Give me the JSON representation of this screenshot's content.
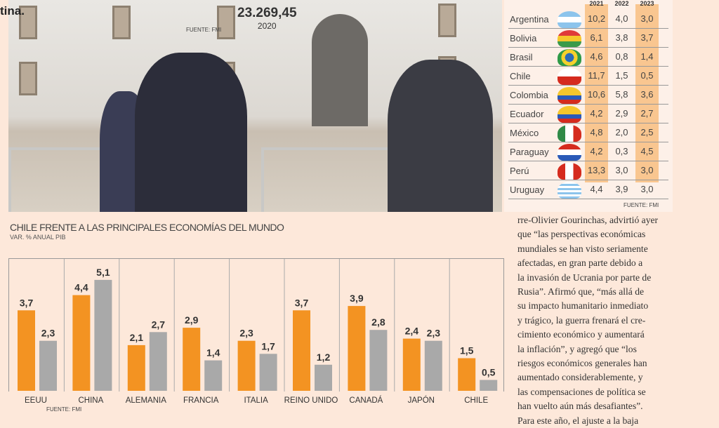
{
  "lead_text": "tina.",
  "pib_figure": {
    "value": "23.269,45",
    "year": "2020",
    "source": "FUENTE: FMI"
  },
  "table": {
    "headers": [
      "2021",
      "2022",
      "2023"
    ],
    "source": "FUENTE: FMI",
    "rows": [
      {
        "country": "Argentina",
        "flag": "argentina-flag",
        "values": [
          "10,2",
          "4,0",
          "3,0"
        ]
      },
      {
        "country": "Bolivia",
        "flag": "bolivia-flag",
        "values": [
          "6,1",
          "3,8",
          "3,7"
        ]
      },
      {
        "country": "Brasil",
        "flag": "brazil-flag",
        "values": [
          "4,6",
          "0,8",
          "1,4"
        ]
      },
      {
        "country": "Chile",
        "flag": "chile-flag",
        "values": [
          "11,7",
          "1,5",
          "0,5"
        ]
      },
      {
        "country": "Colombia",
        "flag": "colombia-flag",
        "values": [
          "10,6",
          "5,8",
          "3,6"
        ]
      },
      {
        "country": "Ecuador",
        "flag": "ecuador-flag",
        "values": [
          "4,2",
          "2,9",
          "2,7"
        ]
      },
      {
        "country": "México",
        "flag": "mexico-flag",
        "values": [
          "4,8",
          "2,0",
          "2,5"
        ]
      },
      {
        "country": "Paraguay",
        "flag": "paraguay-flag",
        "values": [
          "4,2",
          "0,3",
          "4,5"
        ]
      },
      {
        "country": "Perú",
        "flag": "peru-flag",
        "values": [
          "13,3",
          "3,0",
          "3,0"
        ]
      },
      {
        "country": "Uruguay",
        "flag": "uruguay-flag",
        "values": [
          "4,4",
          "3,9",
          "3,0"
        ]
      }
    ]
  },
  "chart_data": {
    "type": "bar",
    "title": "CHILE FRENTE A LAS PRINCIPALES ECONOMÍAS DEL MUNDO",
    "subtitle": "VAR. % ANUAL PIB",
    "source": "FUENTE: FMI",
    "categories": [
      "EEUU",
      "CHINA",
      "ALEMANIA",
      "FRANCIA",
      "ITALIA",
      "REINO UNIDO",
      "CANADÁ",
      "JAPÓN",
      "CHILE"
    ],
    "series": [
      {
        "color": "#f39322",
        "values": [
          3.7,
          4.4,
          2.1,
          2.9,
          2.3,
          3.7,
          3.9,
          2.4,
          1.5
        ],
        "labels": [
          "3,7",
          "4,4",
          "2,1",
          "2,9",
          "2,3",
          "3,7",
          "3,9",
          "2,4",
          "1,5"
        ]
      },
      {
        "color": "#a9a9a9",
        "values": [
          2.3,
          5.1,
          2.7,
          1.4,
          1.7,
          1.2,
          2.8,
          2.3,
          0.5
        ],
        "labels": [
          "2,3",
          "5,1",
          "2,7",
          "1,4",
          "1,7",
          "1,2",
          "2,8",
          "2,3",
          "0,5"
        ]
      }
    ],
    "ylim": [
      0,
      6
    ],
    "grid": false
  },
  "article": {
    "lines": [
      "rre-Olivier Gourinchas, advirtió ayer",
      "que “las perspectivas económicas",
      "mundiales se han visto seriamente",
      "afectadas, en gran parte debido a",
      "la invasión de Ucrania por parte de",
      "Rusia”. Afirmó que, “más allá de",
      "su impacto humanitario inmediato",
      "y trágico, la guerra frenará el cre-",
      "cimiento económico y aumentará",
      "la inflación”, y agregó que “los",
      "riesgos económicos generales han",
      "aumentado considerablemente, y",
      "las compensaciones de política se",
      "han vuelto aún más desafiantes”.",
      "   Para este año, el ajuste a la baja"
    ]
  }
}
